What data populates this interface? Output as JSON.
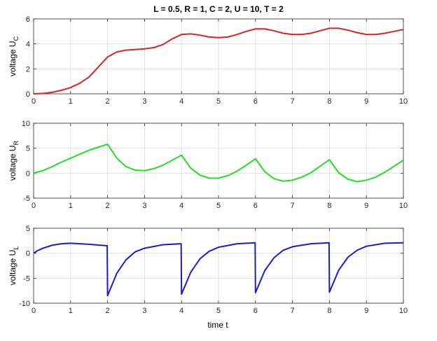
{
  "figure": {
    "title": "L = 0.5, R = 1, C = 2, U = 10, T = 2",
    "xlabel": "time  t"
  },
  "chart_data": [
    {
      "type": "line",
      "title": "L = 0.5, R = 1, C = 2, U = 10, T = 2",
      "ylabel_main": "voltage  U",
      "ylabel_sub": "C",
      "xlabel": "",
      "xlim": [
        0,
        10
      ],
      "ylim": [
        0,
        6
      ],
      "xticks": [
        0,
        1,
        2,
        3,
        4,
        5,
        6,
        7,
        8,
        9,
        10
      ],
      "yticks": [
        0,
        2,
        4,
        6
      ],
      "grid": true,
      "series": [
        {
          "color": "#e02020",
          "x": [
            0,
            0.25,
            0.5,
            0.75,
            1,
            1.25,
            1.5,
            1.75,
            2,
            2.25,
            2.5,
            2.75,
            3,
            3.25,
            3.5,
            3.75,
            4,
            4.25,
            4.5,
            4.75,
            5,
            5.25,
            5.5,
            5.75,
            6,
            6.25,
            6.5,
            6.75,
            7,
            7.25,
            7.5,
            7.75,
            8,
            8.25,
            8.5,
            8.75,
            9,
            9.25,
            9.5,
            9.75,
            10
          ],
          "y": [
            0,
            0.03,
            0.12,
            0.28,
            0.5,
            0.85,
            1.35,
            2.15,
            2.95,
            3.35,
            3.5,
            3.55,
            3.6,
            3.7,
            3.95,
            4.4,
            4.75,
            4.8,
            4.7,
            4.55,
            4.5,
            4.55,
            4.75,
            5.0,
            5.2,
            5.2,
            5.05,
            4.85,
            4.75,
            4.75,
            4.85,
            5.05,
            5.25,
            5.25,
            5.1,
            4.9,
            4.75,
            4.75,
            4.85,
            5.0,
            5.15
          ]
        }
      ]
    },
    {
      "type": "line",
      "ylabel_main": "voltage  U",
      "ylabel_sub": "R",
      "xlabel": "",
      "xlim": [
        0,
        10
      ],
      "ylim": [
        -5,
        10
      ],
      "xticks": [
        0,
        1,
        2,
        3,
        4,
        5,
        6,
        7,
        8,
        9,
        10
      ],
      "yticks": [
        -5,
        0,
        5,
        10
      ],
      "grid": true,
      "series": [
        {
          "color": "#22e022",
          "x": [
            0,
            0.25,
            0.5,
            0.75,
            1,
            1.25,
            1.5,
            1.75,
            2,
            2.25,
            2.5,
            2.75,
            3,
            3.25,
            3.5,
            3.75,
            4,
            4.25,
            4.5,
            4.75,
            5,
            5.25,
            5.5,
            5.75,
            6,
            6.25,
            6.5,
            6.75,
            7,
            7.25,
            7.5,
            7.75,
            8,
            8.25,
            8.5,
            8.75,
            9,
            9.25,
            9.5,
            9.75,
            10
          ],
          "y": [
            0,
            0.5,
            1.3,
            2.2,
            3.0,
            3.8,
            4.6,
            5.2,
            5.8,
            3.0,
            1.3,
            0.6,
            0.5,
            0.9,
            1.6,
            2.6,
            3.6,
            1.0,
            -0.4,
            -1.0,
            -1.0,
            -0.5,
            0.4,
            1.6,
            2.9,
            0.3,
            -1.1,
            -1.6,
            -1.4,
            -0.8,
            0.1,
            1.4,
            2.7,
            0.1,
            -1.2,
            -1.7,
            -1.4,
            -0.8,
            0.2,
            1.4,
            2.6
          ]
        }
      ]
    },
    {
      "type": "line",
      "ylabel_main": "voltage  U",
      "ylabel_sub": "L",
      "xlabel": "time  t",
      "xlim": [
        0,
        10
      ],
      "ylim": [
        -10,
        5
      ],
      "xticks": [
        0,
        1,
        2,
        3,
        4,
        5,
        6,
        7,
        8,
        9,
        10
      ],
      "yticks": [
        -10,
        -5,
        0,
        5
      ],
      "grid": true,
      "series": [
        {
          "color": "#1a1ad8",
          "x": [
            0,
            0.1,
            0.25,
            0.5,
            0.75,
            1,
            1.5,
            1.99,
            2.0,
            2.25,
            2.5,
            2.75,
            3,
            3.5,
            3.99,
            4.0,
            4.25,
            4.5,
            4.75,
            5,
            5.5,
            5.99,
            6.0,
            6.25,
            6.5,
            6.75,
            7,
            7.5,
            7.99,
            8.0,
            8.25,
            8.5,
            8.75,
            9,
            9.5,
            10
          ],
          "y": [
            0,
            0.5,
            1.0,
            1.6,
            1.9,
            2.0,
            1.8,
            1.5,
            -8.5,
            -4.0,
            -1.3,
            0.3,
            1.0,
            1.7,
            1.9,
            -8.2,
            -3.8,
            -1.1,
            0.4,
            1.2,
            1.9,
            2.1,
            -7.9,
            -3.5,
            -0.9,
            0.6,
            1.3,
            1.9,
            2.1,
            -7.8,
            -3.4,
            -0.8,
            0.6,
            1.4,
            2.0,
            2.1
          ]
        }
      ]
    }
  ]
}
